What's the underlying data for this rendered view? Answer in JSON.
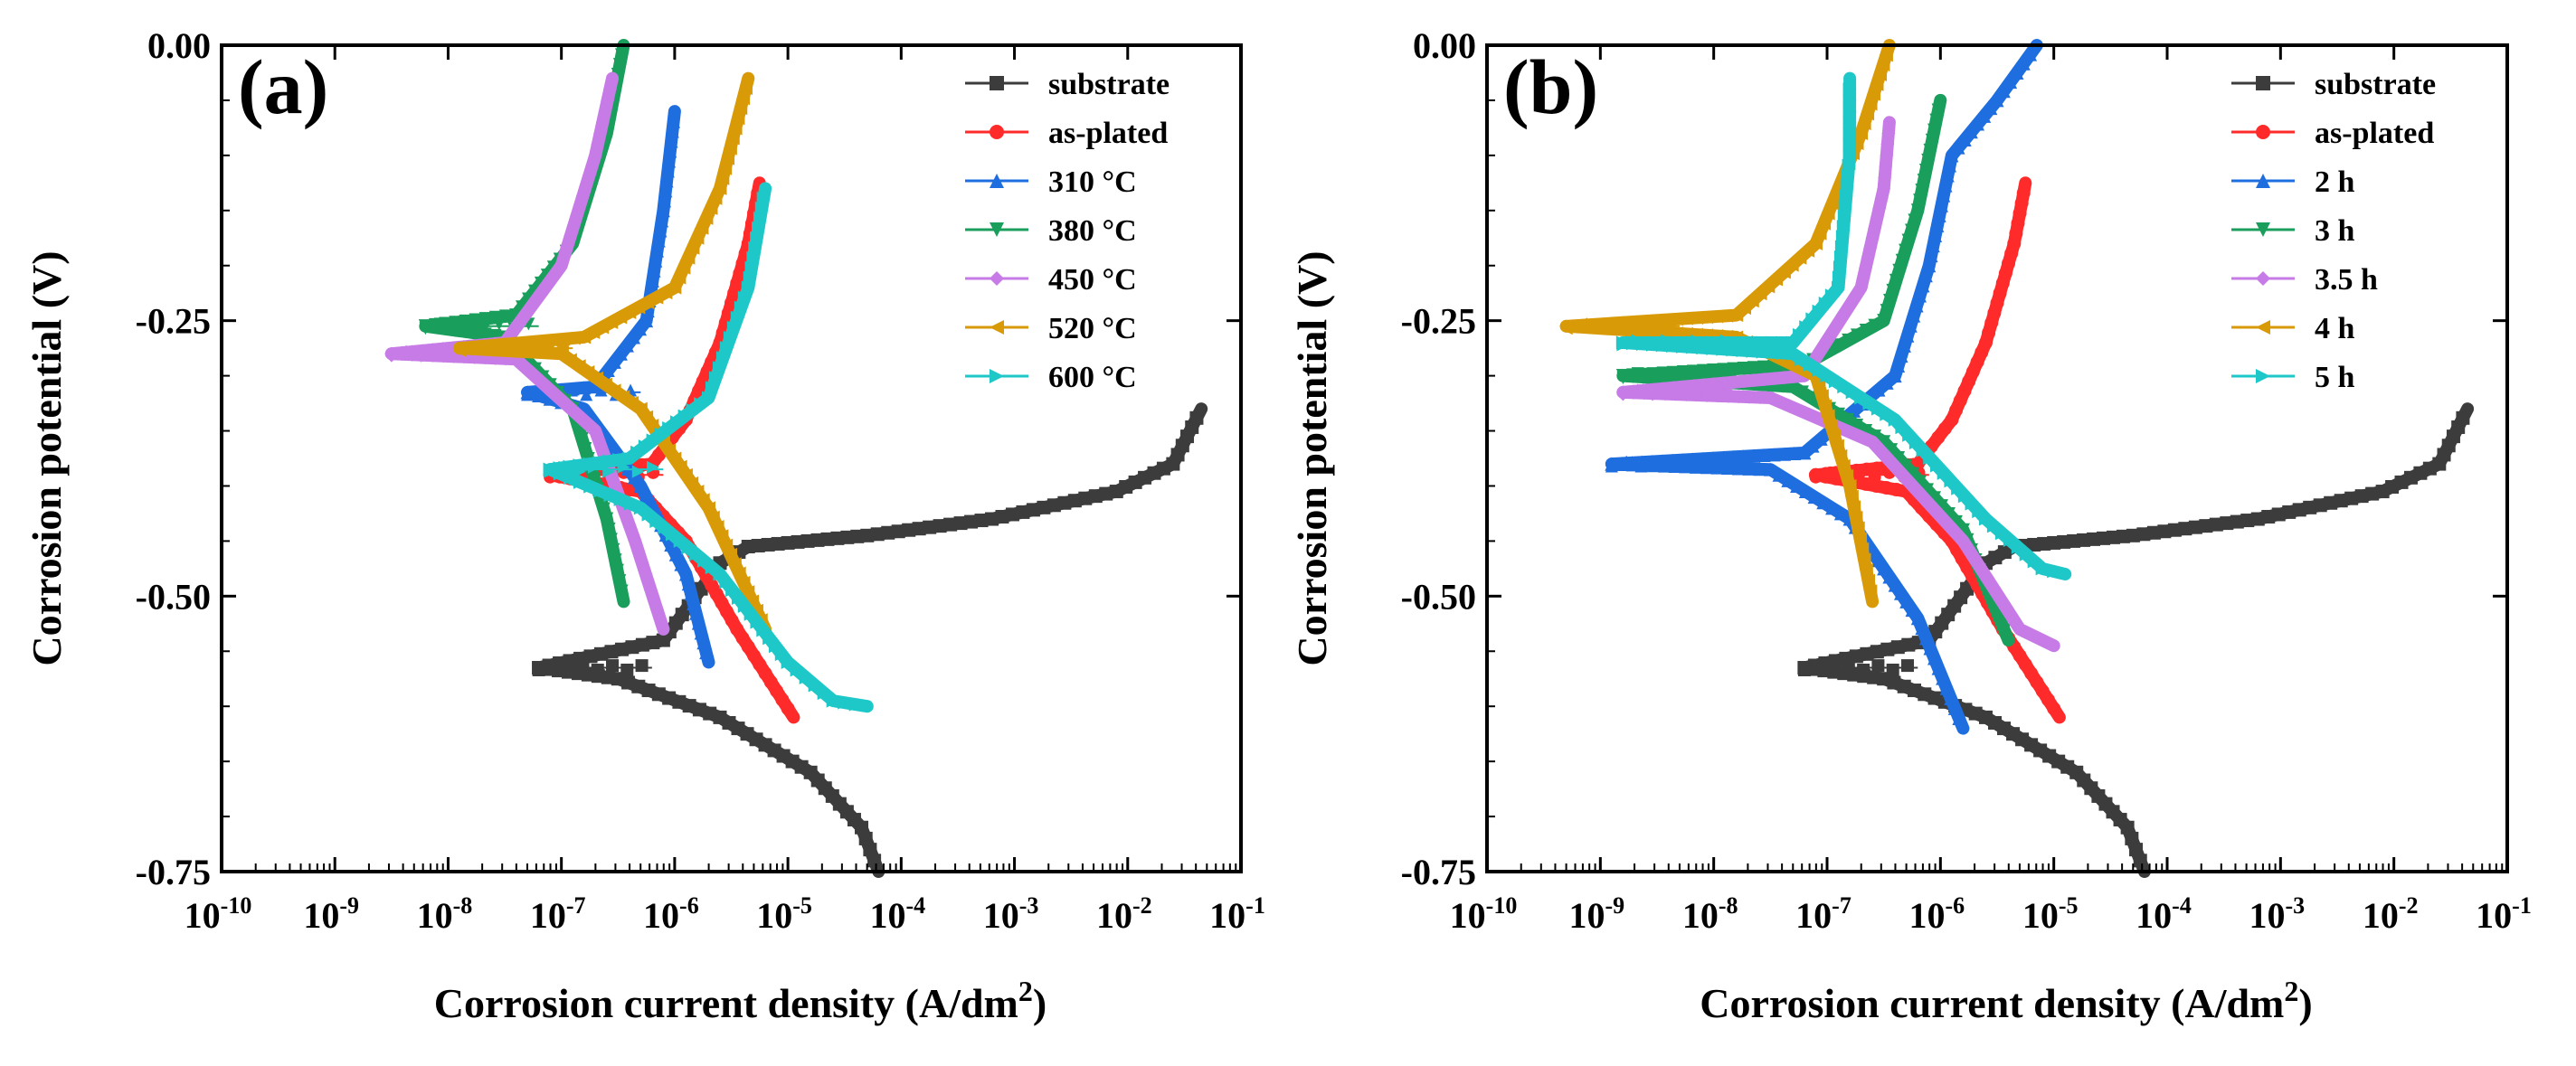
{
  "chart_data": [
    {
      "type": "line",
      "panel_label": "(a)",
      "xlabel": "Corrosion current density (A/dm",
      "xlabel_sup": "2",
      "xlabel_end": ")",
      "ylabel": "Corrosion potential (V)",
      "xscale": "log",
      "xlim": [
        -10,
        -1
      ],
      "ylim": [
        -0.75,
        0.0
      ],
      "x_ticks": [
        -10,
        -9,
        -8,
        -7,
        -6,
        -5,
        -4,
        -3,
        -2,
        -1
      ],
      "x_tick_base": "10",
      "y_ticks": [
        0.0,
        -0.25,
        -0.5,
        -0.75
      ],
      "y_tick_labels": [
        "0.00",
        "-0.25",
        "-0.50",
        "-0.75"
      ],
      "legend_position": "top-right",
      "series": [
        {
          "name": "substrate",
          "color": "#3c3c3c",
          "marker": "square",
          "ecorr": -0.565,
          "logi": -7.2,
          "cathodic": [
            [
              -7.2,
              -0.565
            ],
            [
              -6.5,
              -0.575
            ],
            [
              -5.6,
              -0.61
            ],
            [
              -4.8,
              -0.66
            ],
            [
              -4.35,
              -0.71
            ],
            [
              -4.2,
              -0.75
            ]
          ],
          "anodic": [
            [
              -7.2,
              -0.565
            ],
            [
              -6.1,
              -0.54
            ],
            [
              -5.6,
              -0.47
            ],
            [
              -5.35,
              -0.455
            ],
            [
              -4.3,
              -0.445
            ],
            [
              -3.2,
              -0.43
            ],
            [
              -2.1,
              -0.405
            ],
            [
              -1.6,
              -0.38
            ],
            [
              -1.35,
              -0.33
            ]
          ]
        },
        {
          "name": "as-plated",
          "color": "#ff2a2a",
          "marker": "circle",
          "ecorr": -0.39,
          "logi": -7.1,
          "cathodic": [
            [
              -7.1,
              -0.39
            ],
            [
              -6.3,
              -0.405
            ],
            [
              -5.9,
              -0.45
            ],
            [
              -5.45,
              -0.53
            ],
            [
              -4.95,
              -0.61
            ]
          ],
          "anodic": [
            [
              -7.1,
              -0.39
            ],
            [
              -6.2,
              -0.38
            ],
            [
              -5.9,
              -0.34
            ],
            [
              -5.6,
              -0.27
            ],
            [
              -5.35,
              -0.18
            ],
            [
              -5.25,
              -0.125
            ]
          ]
        },
        {
          "name": "310 °C",
          "color": "#1e6ee0",
          "marker": "triangle-up",
          "ecorr": -0.315,
          "logi": -7.3,
          "cathodic": [
            [
              -7.3,
              -0.315
            ],
            [
              -6.8,
              -0.33
            ],
            [
              -6.3,
              -0.4
            ],
            [
              -5.9,
              -0.48
            ],
            [
              -5.7,
              -0.56
            ]
          ],
          "anodic": [
            [
              -7.3,
              -0.315
            ],
            [
              -6.7,
              -0.31
            ],
            [
              -6.25,
              -0.25
            ],
            [
              -6.1,
              -0.15
            ],
            [
              -6.0,
              -0.06
            ]
          ]
        },
        {
          "name": "380 °C",
          "color": "#1a9e5c",
          "marker": "triangle-down",
          "ecorr": -0.255,
          "logi": -8.2,
          "cathodic": [
            [
              -8.2,
              -0.255
            ],
            [
              -7.5,
              -0.265
            ],
            [
              -6.9,
              -0.33
            ],
            [
              -6.6,
              -0.43
            ],
            [
              -6.45,
              -0.505
            ]
          ],
          "anodic": [
            [
              -8.2,
              -0.255
            ],
            [
              -7.4,
              -0.245
            ],
            [
              -6.9,
              -0.18
            ],
            [
              -6.6,
              -0.08
            ],
            [
              -6.45,
              0.0
            ]
          ]
        },
        {
          "name": "450 °C",
          "color": "#c77be6",
          "marker": "diamond",
          "ecorr": -0.28,
          "logi": -8.5,
          "cathodic": [
            [
              -8.5,
              -0.28
            ],
            [
              -7.4,
              -0.285
            ],
            [
              -6.7,
              -0.35
            ],
            [
              -6.35,
              -0.45
            ],
            [
              -6.1,
              -0.53
            ]
          ],
          "anodic": [
            [
              -8.5,
              -0.28
            ],
            [
              -7.5,
              -0.27
            ],
            [
              -7.0,
              -0.2
            ],
            [
              -6.7,
              -0.1
            ],
            [
              -6.55,
              -0.03
            ]
          ]
        },
        {
          "name": "520 °C",
          "color": "#d99a08",
          "marker": "triangle-left",
          "ecorr": -0.275,
          "logi": -7.9,
          "cathodic": [
            [
              -7.9,
              -0.275
            ],
            [
              -7.0,
              -0.28
            ],
            [
              -6.3,
              -0.33
            ],
            [
              -5.7,
              -0.42
            ],
            [
              -5.2,
              -0.53
            ]
          ],
          "anodic": [
            [
              -7.9,
              -0.275
            ],
            [
              -6.8,
              -0.265
            ],
            [
              -6.0,
              -0.22
            ],
            [
              -5.6,
              -0.13
            ],
            [
              -5.35,
              -0.03
            ]
          ]
        },
        {
          "name": "600 °C",
          "color": "#1ec8c8",
          "marker": "triangle-right",
          "ecorr": -0.385,
          "logi": -7.1,
          "cathodic": [
            [
              -7.1,
              -0.385
            ],
            [
              -6.3,
              -0.42
            ],
            [
              -5.6,
              -0.48
            ],
            [
              -5.0,
              -0.56
            ],
            [
              -4.6,
              -0.595
            ],
            [
              -4.3,
              -0.6
            ]
          ],
          "anodic": [
            [
              -7.1,
              -0.385
            ],
            [
              -6.4,
              -0.375
            ],
            [
              -5.7,
              -0.32
            ],
            [
              -5.35,
              -0.22
            ],
            [
              -5.2,
              -0.13
            ]
          ]
        }
      ]
    },
    {
      "type": "line",
      "panel_label": "(b)",
      "xlabel": "Corrosion current density (A/dm",
      "xlabel_sup": "2",
      "xlabel_end": ")",
      "ylabel": "Corrosion potential (V)",
      "xscale": "log",
      "xlim": [
        -10,
        -1
      ],
      "ylim": [
        -0.75,
        0.0
      ],
      "x_ticks": [
        -10,
        -9,
        -8,
        -7,
        -6,
        -5,
        -4,
        -3,
        -2,
        -1
      ],
      "x_tick_base": "10",
      "y_ticks": [
        0.0,
        -0.25,
        -0.5,
        -0.75
      ],
      "y_tick_labels": [
        "0.00",
        "-0.25",
        "-0.50",
        "-0.75"
      ],
      "legend_position": "top-right",
      "series": [
        {
          "name": "substrate",
          "color": "#3c3c3c",
          "marker": "square",
          "ecorr": -0.565,
          "logi": -7.2,
          "cathodic": [
            [
              -7.2,
              -0.565
            ],
            [
              -6.5,
              -0.575
            ],
            [
              -5.6,
              -0.61
            ],
            [
              -4.8,
              -0.66
            ],
            [
              -4.35,
              -0.71
            ],
            [
              -4.2,
              -0.75
            ]
          ],
          "anodic": [
            [
              -7.2,
              -0.565
            ],
            [
              -6.1,
              -0.54
            ],
            [
              -5.6,
              -0.47
            ],
            [
              -5.35,
              -0.455
            ],
            [
              -4.3,
              -0.445
            ],
            [
              -3.2,
              -0.43
            ],
            [
              -2.1,
              -0.405
            ],
            [
              -1.6,
              -0.38
            ],
            [
              -1.35,
              -0.33
            ]
          ]
        },
        {
          "name": "as-plated",
          "color": "#ff2a2a",
          "marker": "circle",
          "ecorr": -0.39,
          "logi": -7.1,
          "cathodic": [
            [
              -7.1,
              -0.39
            ],
            [
              -6.3,
              -0.405
            ],
            [
              -5.9,
              -0.45
            ],
            [
              -5.45,
              -0.53
            ],
            [
              -4.95,
              -0.61
            ]
          ],
          "anodic": [
            [
              -7.1,
              -0.39
            ],
            [
              -6.2,
              -0.38
            ],
            [
              -5.9,
              -0.34
            ],
            [
              -5.6,
              -0.27
            ],
            [
              -5.35,
              -0.18
            ],
            [
              -5.25,
              -0.125
            ]
          ]
        },
        {
          "name": "2 h",
          "color": "#1e6ee0",
          "marker": "triangle-up",
          "ecorr": -0.38,
          "logi": -8.9,
          "cathodic": [
            [
              -8.9,
              -0.38
            ],
            [
              -7.5,
              -0.385
            ],
            [
              -6.8,
              -0.43
            ],
            [
              -6.2,
              -0.52
            ],
            [
              -5.8,
              -0.62
            ]
          ],
          "anodic": [
            [
              -8.9,
              -0.38
            ],
            [
              -7.2,
              -0.37
            ],
            [
              -6.4,
              -0.3
            ],
            [
              -6.1,
              -0.2
            ],
            [
              -5.9,
              -0.1
            ],
            [
              -5.5,
              -0.05
            ],
            [
              -5.15,
              0.0
            ]
          ]
        },
        {
          "name": "3 h",
          "color": "#1a9e5c",
          "marker": "triangle-down",
          "ecorr": -0.3,
          "logi": -8.8,
          "cathodic": [
            [
              -8.8,
              -0.3
            ],
            [
              -7.3,
              -0.31
            ],
            [
              -6.5,
              -0.36
            ],
            [
              -5.8,
              -0.44
            ],
            [
              -5.4,
              -0.54
            ]
          ],
          "anodic": [
            [
              -8.8,
              -0.3
            ],
            [
              -7.2,
              -0.29
            ],
            [
              -6.5,
              -0.25
            ],
            [
              -6.2,
              -0.15
            ],
            [
              -6.0,
              -0.05
            ]
          ]
        },
        {
          "name": "3.5 h",
          "color": "#c77be6",
          "marker": "diamond",
          "ecorr": -0.315,
          "logi": -8.8,
          "cathodic": [
            [
              -8.8,
              -0.315
            ],
            [
              -7.5,
              -0.32
            ],
            [
              -6.6,
              -0.36
            ],
            [
              -5.8,
              -0.45
            ],
            [
              -5.3,
              -0.53
            ],
            [
              -5.0,
              -0.545
            ]
          ],
          "anodic": [
            [
              -8.8,
              -0.315
            ],
            [
              -7.2,
              -0.3
            ],
            [
              -6.7,
              -0.22
            ],
            [
              -6.5,
              -0.13
            ],
            [
              -6.45,
              -0.07
            ]
          ]
        },
        {
          "name": "4 h",
          "color": "#d99a08",
          "marker": "triangle-left",
          "ecorr": -0.255,
          "logi": -9.3,
          "cathodic": [
            [
              -9.3,
              -0.255
            ],
            [
              -7.8,
              -0.265
            ],
            [
              -7.1,
              -0.3
            ],
            [
              -6.8,
              -0.4
            ],
            [
              -6.6,
              -0.505
            ]
          ],
          "anodic": [
            [
              -9.3,
              -0.255
            ],
            [
              -7.8,
              -0.245
            ],
            [
              -7.1,
              -0.18
            ],
            [
              -6.7,
              -0.08
            ],
            [
              -6.45,
              0.0
            ]
          ]
        },
        {
          "name": "5 h",
          "color": "#1ec8c8",
          "marker": "triangle-right",
          "ecorr": -0.27,
          "logi": -8.8,
          "cathodic": [
            [
              -8.8,
              -0.27
            ],
            [
              -7.3,
              -0.28
            ],
            [
              -6.4,
              -0.34
            ],
            [
              -5.6,
              -0.43
            ],
            [
              -5.1,
              -0.475
            ],
            [
              -4.9,
              -0.48
            ]
          ],
          "anodic": [
            [
              -8.8,
              -0.27
            ],
            [
              -7.3,
              -0.27
            ],
            [
              -6.9,
              -0.22
            ],
            [
              -6.8,
              -0.1
            ],
            [
              -6.8,
              -0.03
            ]
          ]
        }
      ]
    }
  ]
}
